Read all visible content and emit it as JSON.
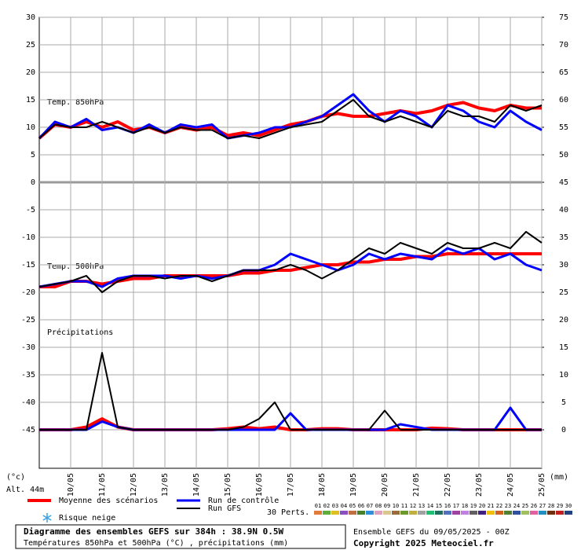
{
  "chart_data": {
    "type": "line",
    "categories": [
      null,
      null,
      "10/05",
      null,
      "11/05",
      null,
      "12/05",
      null,
      "13/05",
      null,
      "14/05",
      null,
      "15/05",
      null,
      "16/05",
      null,
      "17/05",
      null,
      "18/05",
      null,
      "19/05",
      null,
      "20/05",
      null,
      "21/05",
      null,
      "22/05",
      null,
      "23/05",
      null,
      "24/05",
      null,
      "25/05"
    ],
    "ylim": [
      -52,
      30
    ],
    "yticks": [
      30,
      25,
      20,
      15,
      10,
      5,
      0,
      -5,
      -10,
      -15,
      -20,
      -25,
      -30,
      -35,
      -40,
      -45
    ],
    "y2lim": [
      -7,
      75
    ],
    "y2ticks": [
      75,
      70,
      65,
      60,
      55,
      50,
      45,
      40,
      35,
      30,
      25,
      20,
      15,
      10,
      5,
      0
    ],
    "grid": true,
    "y_unit_left": "(°c)",
    "y_unit_right": "(mm)",
    "panels": [
      "Temp. 850hPa",
      "Temp. 500hPa",
      "Précipitations"
    ],
    "series": [
      {
        "name": "Moyenne des scénarios",
        "color": "#ff0000",
        "width": 4,
        "t850": [
          8,
          10.5,
          10,
          11,
          10,
          11,
          9.5,
          10,
          9,
          10,
          9.5,
          10,
          8.5,
          9,
          8.5,
          9.5,
          10.5,
          11,
          12,
          12.5,
          12,
          12,
          12.5,
          13,
          12.5,
          13,
          14,
          14.5,
          13.5,
          13,
          14,
          13.5,
          13.5
        ],
        "t500": [
          -19,
          -19,
          -18,
          -18,
          -18.5,
          -18,
          -17.5,
          -17.5,
          -17,
          -17,
          -17,
          -17,
          -17,
          -16.5,
          -16.5,
          -16,
          -16,
          -15.5,
          -15,
          -15,
          -14.5,
          -14.5,
          -14,
          -14,
          -13.5,
          -13.5,
          -13,
          -13,
          -13,
          -13,
          -13,
          -13,
          -13
        ],
        "precip": [
          0,
          0,
          0,
          0.5,
          2,
          0.5,
          0,
          0,
          0,
          0,
          0,
          0,
          0.2,
          0.5,
          0.2,
          0.5,
          0,
          0,
          0.2,
          0.2,
          0,
          0,
          0,
          0,
          0,
          0.3,
          0.2,
          0,
          0,
          0,
          0,
          0,
          0
        ]
      },
      {
        "name": "Run de contrôle",
        "color": "#0000ff",
        "width": 3,
        "t850": [
          8,
          11,
          10,
          11.5,
          9.5,
          10,
          9,
          10.5,
          9,
          10.5,
          10,
          10.5,
          8,
          8.5,
          9,
          10,
          10,
          11,
          12,
          14,
          16,
          13,
          11,
          13,
          12,
          10,
          14,
          13,
          11,
          10,
          13,
          11,
          9.5
        ],
        "t500": [
          -19,
          -18.5,
          -18,
          -18,
          -19,
          -17.5,
          -17,
          -17,
          -17,
          -17.5,
          -17,
          -17.5,
          -17,
          -16,
          -16,
          -15,
          -13,
          -14,
          -15,
          -16,
          -15,
          -13,
          -14,
          -13,
          -13.5,
          -14,
          -12,
          -13,
          -12,
          -14,
          -13,
          -15,
          -16
        ],
        "precip": [
          0,
          0,
          0,
          0,
          1.5,
          0.5,
          0,
          0,
          0,
          0,
          0,
          0,
          0,
          0,
          0,
          0,
          3,
          0,
          0,
          0,
          0,
          0,
          0,
          1,
          0.5,
          0,
          0,
          0,
          0,
          0,
          4,
          0,
          0
        ]
      },
      {
        "name": "Run GFS",
        "color": "#000000",
        "width": 2,
        "t850": [
          8,
          10.5,
          10,
          10,
          11,
          10,
          9,
          10,
          9,
          10,
          9.5,
          9.5,
          8,
          8.5,
          8,
          9,
          10,
          10.5,
          11,
          13,
          15,
          12,
          11,
          12,
          11,
          10,
          13,
          12,
          12,
          11,
          14,
          13,
          14
        ],
        "t500": [
          -19,
          -18.5,
          -18,
          -17,
          -20,
          -18,
          -17,
          -17,
          -17.5,
          -17,
          -17,
          -18,
          -17,
          -16,
          -16,
          -16,
          -15,
          -16,
          -17.5,
          -16,
          -14,
          -12,
          -13,
          -11,
          -12,
          -13,
          -11,
          -12,
          -12,
          -11,
          -12,
          -9,
          -11
        ],
        "precip": [
          0,
          0,
          0,
          0,
          14,
          0.5,
          0,
          0,
          0,
          0,
          0,
          0,
          0,
          0.5,
          2,
          5,
          0,
          0,
          0,
          0,
          0,
          0,
          3.5,
          0,
          0,
          0,
          0,
          0,
          0,
          0,
          0,
          0,
          0
        ]
      }
    ],
    "altitude": "Alt. 44m",
    "snow_label": "Risque neige",
    "perts_label": "30 Perts.",
    "perts": [
      {
        "label": "01",
        "color": "#e07b39"
      },
      {
        "label": "02",
        "color": "#5fae3c"
      },
      {
        "label": "03",
        "color": "#e0c020"
      },
      {
        "label": "04",
        "color": "#8a4fc0"
      },
      {
        "label": "05",
        "color": "#c07040"
      },
      {
        "label": "06",
        "color": "#4a7f2a"
      },
      {
        "label": "07",
        "color": "#2f8fd8"
      },
      {
        "label": "08",
        "color": "#e0a0c0"
      },
      {
        "label": "09",
        "color": "#d8c890"
      },
      {
        "label": "10",
        "color": "#9a6a3a"
      },
      {
        "label": "11",
        "color": "#6a9a2a"
      },
      {
        "label": "12",
        "color": "#c0b040"
      },
      {
        "label": "13",
        "color": "#a0a0a0"
      },
      {
        "label": "14",
        "color": "#20c070"
      },
      {
        "label": "15",
        "color": "#207060"
      },
      {
        "label": "16",
        "color": "#5070c0"
      },
      {
        "label": "17",
        "color": "#a040a0"
      },
      {
        "label": "18",
        "color": "#c080e0"
      },
      {
        "label": "19",
        "color": "#606060"
      },
      {
        "label": "20",
        "color": "#402080"
      },
      {
        "label": "21",
        "color": "#f0c000"
      },
      {
        "label": "22",
        "color": "#d06020"
      },
      {
        "label": "23",
        "color": "#508030"
      },
      {
        "label": "24",
        "color": "#3050a0"
      },
      {
        "label": "25",
        "color": "#a0c060"
      },
      {
        "label": "26",
        "color": "#e060a0"
      },
      {
        "label": "27",
        "color": "#2090c0"
      },
      {
        "label": "28",
        "color": "#703010"
      },
      {
        "label": "29",
        "color": "#c02020"
      },
      {
        "label": "30",
        "color": "#204080"
      }
    ],
    "box_title": "Diagramme des ensembles GEFS sur 384h : 38.9N 0.5W",
    "box_subtitle": "Températures 850hPa et 500hPa (°C) , précipitations (mm)",
    "run_info": "Ensemble GEFS du 09/05/2025 - 00Z",
    "copyright": "Copyright 2025 Meteociel.fr"
  }
}
